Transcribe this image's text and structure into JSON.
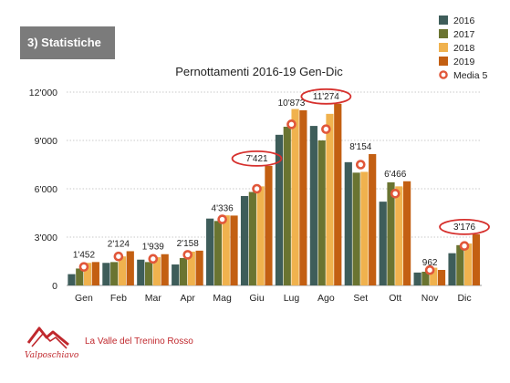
{
  "section_badge": "3) Statistiche",
  "footer": {
    "text": "La Valle del Trenino Rosso",
    "logo_text": "Valposchiavo"
  },
  "colors": {
    "2016": "#3e5d5a",
    "2017": "#6a7431",
    "2018": "#f0b24e",
    "2019": "#c35f12",
    "media_ring": "#e1573a",
    "highlight_oval": "#d6302d",
    "footer_red": "#c0282d"
  },
  "chart_data": {
    "type": "bar",
    "title": "Pernottamenti 2016-19 Gen-Dic",
    "xlabel": "",
    "ylabel": "",
    "categories": [
      "Gen",
      "Feb",
      "Mar",
      "Apr",
      "Mag",
      "Giu",
      "Lug",
      "Ago",
      "Set",
      "Ott",
      "Nov",
      "Dic"
    ],
    "ylim": [
      0,
      12000
    ],
    "yticks": [
      0,
      3000,
      6000,
      9000,
      12000
    ],
    "ytick_labels": [
      "0",
      "3'000",
      "6'000",
      "9'000",
      "12'000"
    ],
    "grid": true,
    "legend_position": "top-right",
    "series": [
      {
        "name": "2016",
        "values": [
          700,
          1400,
          1600,
          1300,
          4150,
          5550,
          9350,
          9900,
          7650,
          5200,
          800,
          2000
        ]
      },
      {
        "name": "2017",
        "values": [
          1050,
          1450,
          1450,
          1700,
          4000,
          5800,
          9850,
          9000,
          7000,
          6400,
          850,
          2500
        ]
      },
      {
        "name": "2018",
        "values": [
          1400,
          1800,
          1750,
          2100,
          4350,
          6150,
          10950,
          10650,
          7050,
          6150,
          1100,
          2600
        ]
      },
      {
        "name": "2019",
        "values": [
          1452,
          2124,
          1939,
          2158,
          4336,
          7421,
          10873,
          11274,
          8154,
          6466,
          962,
          3176
        ]
      }
    ],
    "media": {
      "name": "Media 5",
      "values": [
        1150,
        1800,
        1650,
        1900,
        4100,
        6000,
        10000,
        9700,
        7500,
        5700,
        950,
        2450
      ]
    },
    "data_labels": [
      "1'452",
      "2'124",
      "1'939",
      "2'158",
      "4'336",
      "7'421",
      "10'873",
      "11'274",
      "8'154",
      "6'466",
      "962",
      "3'176"
    ],
    "highlighted_categories": [
      "Giu",
      "Ago",
      "Dic"
    ]
  }
}
